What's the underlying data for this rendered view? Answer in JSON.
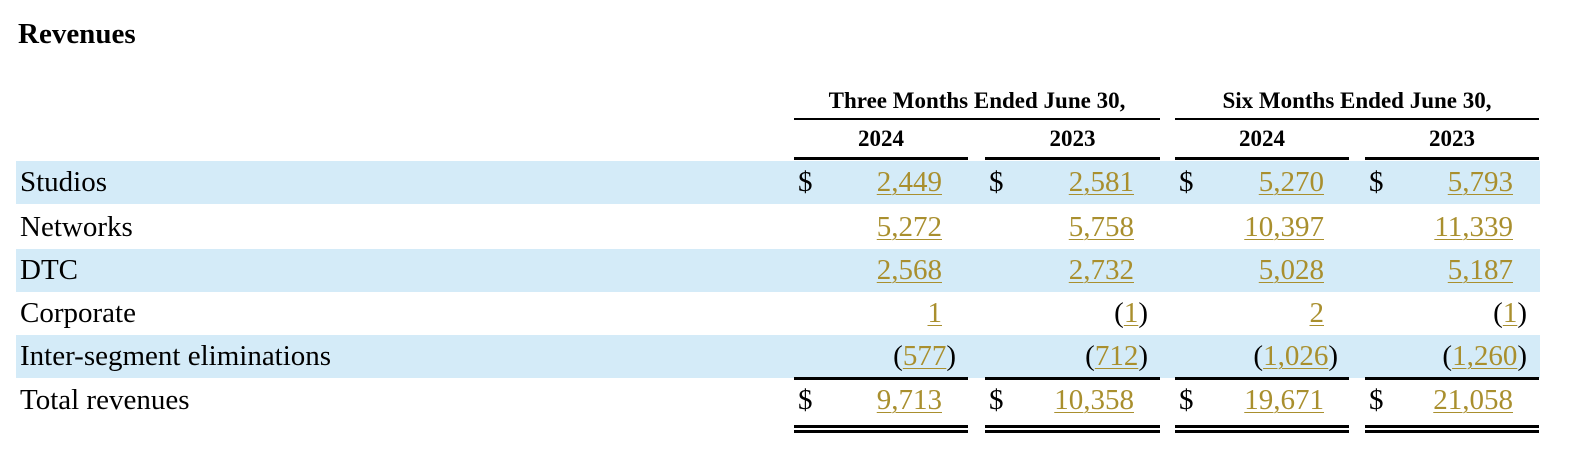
{
  "title": "Revenues",
  "periods": [
    {
      "label": "Three Months Ended June 30,",
      "years": [
        "2024",
        "2023"
      ]
    },
    {
      "label": "Six Months Ended June 30,",
      "years": [
        "2024",
        "2023"
      ]
    }
  ],
  "currency_symbol": "$",
  "rows": [
    {
      "label": "Studios",
      "values": [
        "2,449",
        "2,581",
        "5,270",
        "5,793"
      ],
      "show_currency": true,
      "negative": [
        false,
        false,
        false,
        false
      ]
    },
    {
      "label": "Networks",
      "values": [
        "5,272",
        "5,758",
        "10,397",
        "11,339"
      ],
      "show_currency": false,
      "negative": [
        false,
        false,
        false,
        false
      ]
    },
    {
      "label": "DTC",
      "values": [
        "2,568",
        "2,732",
        "5,028",
        "5,187"
      ],
      "show_currency": false,
      "negative": [
        false,
        false,
        false,
        false
      ]
    },
    {
      "label": "Corporate",
      "values": [
        "1",
        "1",
        "2",
        "1"
      ],
      "show_currency": false,
      "negative": [
        false,
        true,
        false,
        true
      ]
    },
    {
      "label": "Inter-segment eliminations",
      "values": [
        "577",
        "712",
        "1,026",
        "1,260"
      ],
      "show_currency": false,
      "negative": [
        true,
        true,
        true,
        true
      ]
    },
    {
      "label": "Total revenues",
      "values": [
        "9,713",
        "10,358",
        "19,671",
        "21,058"
      ],
      "show_currency": true,
      "negative": [
        false,
        false,
        false,
        false
      ]
    }
  ],
  "colors": {
    "row_shade": "#d4ebf8",
    "linked_value": "#a98f2e"
  }
}
